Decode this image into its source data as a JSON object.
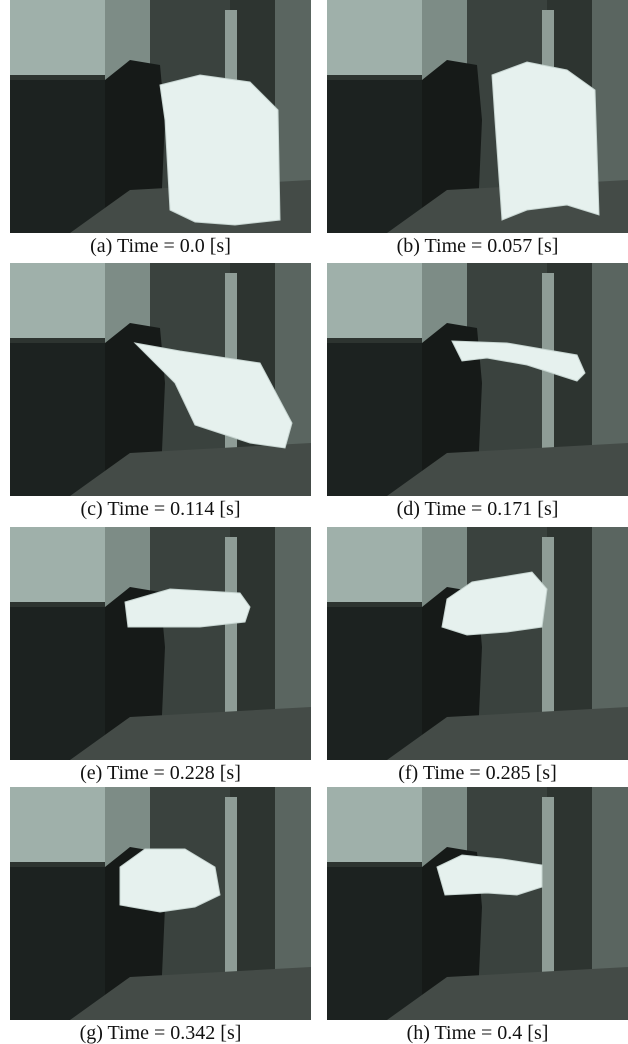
{
  "panels": [
    {
      "caption": "(a) Time = 0.0 [s]"
    },
    {
      "caption": "(b) Time = 0.057 [s]"
    },
    {
      "caption": "(c) Time = 0.114 [s]"
    },
    {
      "caption": "(d) Time = 0.171 [s]"
    },
    {
      "caption": "(e) Time = 0.228 [s]"
    },
    {
      "caption": "(f) Time = 0.285 [s]"
    },
    {
      "caption": "(g) Time = 0.342 [s]"
    },
    {
      "caption": "(h) Time = 0.4 [s]"
    }
  ]
}
